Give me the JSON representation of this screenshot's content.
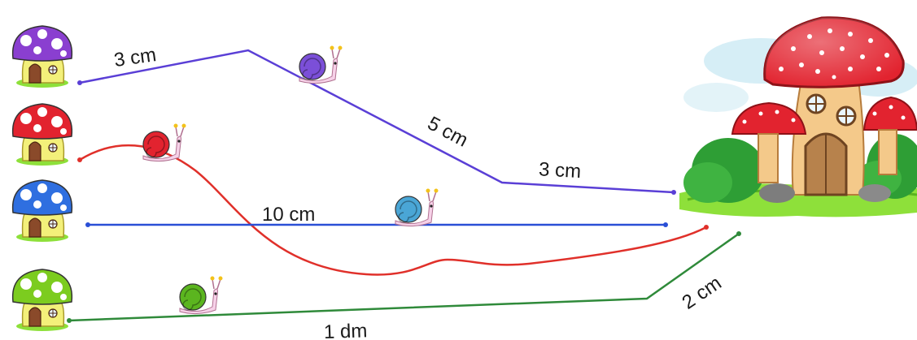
{
  "routes": {
    "purple": {
      "segments": [
        "3 cm",
        "5 cm",
        "3 cm"
      ],
      "color": "#5a3fd6"
    },
    "red": {
      "color": "#e0302a"
    },
    "blue": {
      "segments": [
        "10 cm"
      ],
      "color": "#2a4fd6"
    },
    "green": {
      "segments": [
        "1 dm",
        "2 cm"
      ],
      "color": "#2f8a3a"
    }
  },
  "mushroom_houses": {
    "purple": {
      "cap_color": "#8a3fd0"
    },
    "red": {
      "cap_color": "#e2232f"
    },
    "blue": {
      "cap_color": "#2f6fe0"
    },
    "green": {
      "cap_color": "#7ccc1f"
    }
  },
  "snails": {
    "purple": {
      "shell_color": "#7b4fd8"
    },
    "red": {
      "shell_color": "#e2232f"
    },
    "blue": {
      "shell_color": "#4aa6d6"
    },
    "green": {
      "shell_color": "#5bb51f"
    }
  },
  "icons": [
    "mushroom-house-icon",
    "snail-icon",
    "big-mushroom-house-icon"
  ]
}
